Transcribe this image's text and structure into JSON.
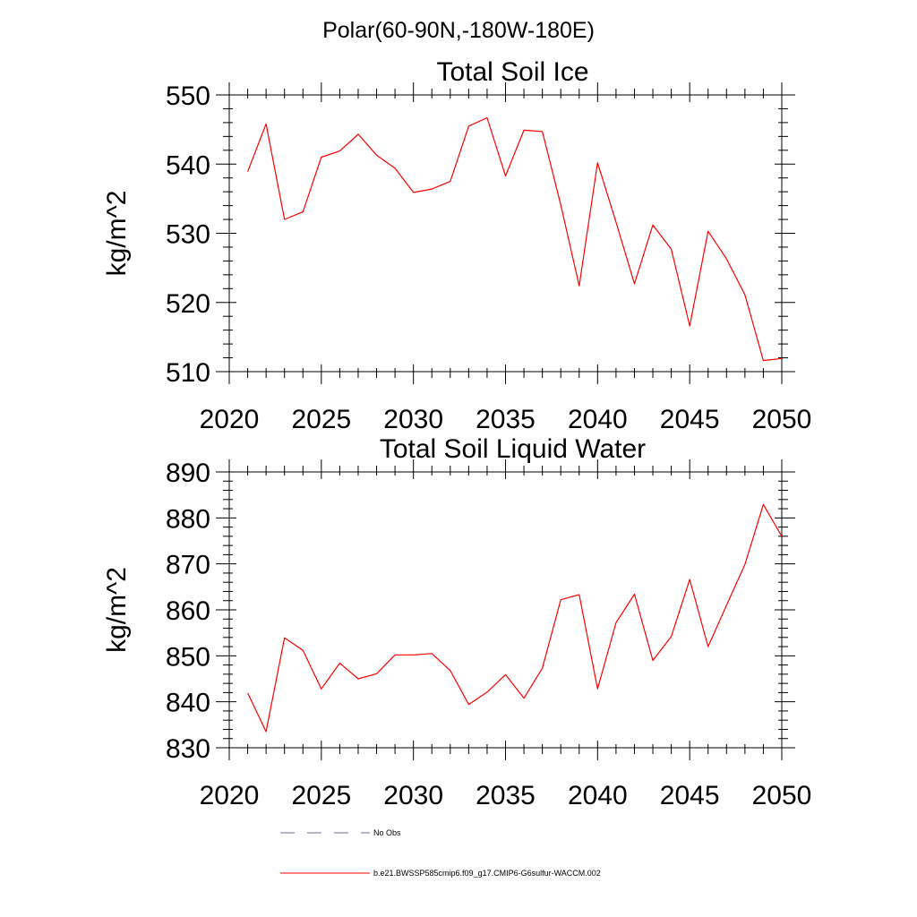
{
  "figure": {
    "suptitle": "Polar(60-90N,-180W-180E)"
  },
  "chart_data": [
    {
      "type": "line",
      "title": "Total Soil Ice",
      "xlabel": "",
      "ylabel": "kg/m^2",
      "xlim": [
        2020,
        2050
      ],
      "ylim": [
        510,
        550
      ],
      "xticks": [
        2020,
        2025,
        2030,
        2035,
        2040,
        2045,
        2050
      ],
      "yticks": [
        510,
        520,
        530,
        540,
        550
      ],
      "grid": false,
      "x": [
        2021,
        2022,
        2023,
        2024,
        2025,
        2026,
        2027,
        2028,
        2029,
        2030,
        2031,
        2032,
        2033,
        2034,
        2035,
        2036,
        2037,
        2038,
        2039,
        2040,
        2041,
        2042,
        2043,
        2044,
        2045,
        2046,
        2047,
        2048,
        2049,
        2050
      ],
      "series": [
        {
          "name": "b.e21.BWSSP585cmip6.f09_g17.CMIP6-G6sulfur-WACCM.002",
          "color": "#ff0000",
          "values": [
            538.9,
            545.8,
            532.0,
            533.1,
            541.0,
            541.9,
            544.3,
            541.3,
            539.4,
            535.9,
            536.4,
            537.5,
            545.5,
            546.7,
            538.3,
            544.9,
            544.7,
            534.1,
            522.4,
            540.2,
            531.6,
            522.7,
            531.2,
            527.7,
            516.6,
            530.3,
            526.3,
            521.1,
            511.6,
            511.9
          ]
        }
      ]
    },
    {
      "type": "line",
      "title": "Total Soil Liquid Water",
      "xlabel": "",
      "ylabel": "kg/m^2",
      "xlim": [
        2020,
        2050
      ],
      "ylim": [
        830,
        890
      ],
      "xticks": [
        2020,
        2025,
        2030,
        2035,
        2040,
        2045,
        2050
      ],
      "yticks": [
        830,
        840,
        850,
        860,
        870,
        880,
        890
      ],
      "grid": false,
      "x": [
        2021,
        2022,
        2023,
        2024,
        2025,
        2026,
        2027,
        2028,
        2029,
        2030,
        2031,
        2032,
        2033,
        2034,
        2035,
        2036,
        2037,
        2038,
        2039,
        2040,
        2041,
        2042,
        2043,
        2044,
        2045,
        2046,
        2047,
        2048,
        2049,
        2050
      ],
      "series": [
        {
          "name": "b.e21.BWSSP585cmip6.f09_g17.CMIP6-G6sulfur-WACCM.002",
          "color": "#ff0000",
          "values": [
            841.9,
            833.5,
            853.9,
            851.2,
            842.8,
            848.4,
            845.0,
            846.1,
            850.2,
            850.2,
            850.5,
            846.8,
            839.4,
            842.1,
            845.9,
            840.8,
            847.3,
            862.2,
            863.3,
            842.8,
            857.2,
            863.4,
            849.0,
            854.2,
            866.6,
            852.0,
            861.0,
            869.9,
            882.9,
            876.0
          ]
        }
      ]
    }
  ],
  "legend": {
    "placement": "bottom",
    "items": [
      {
        "label": "No Obs",
        "style": "dashed",
        "color": "#6a6aa8"
      },
      {
        "label": "b.e21.BWSSP585cmip6.f09_g17.CMIP6-G6sulfur-WACCM.002",
        "style": "solid",
        "color": "#ff0000"
      }
    ]
  }
}
